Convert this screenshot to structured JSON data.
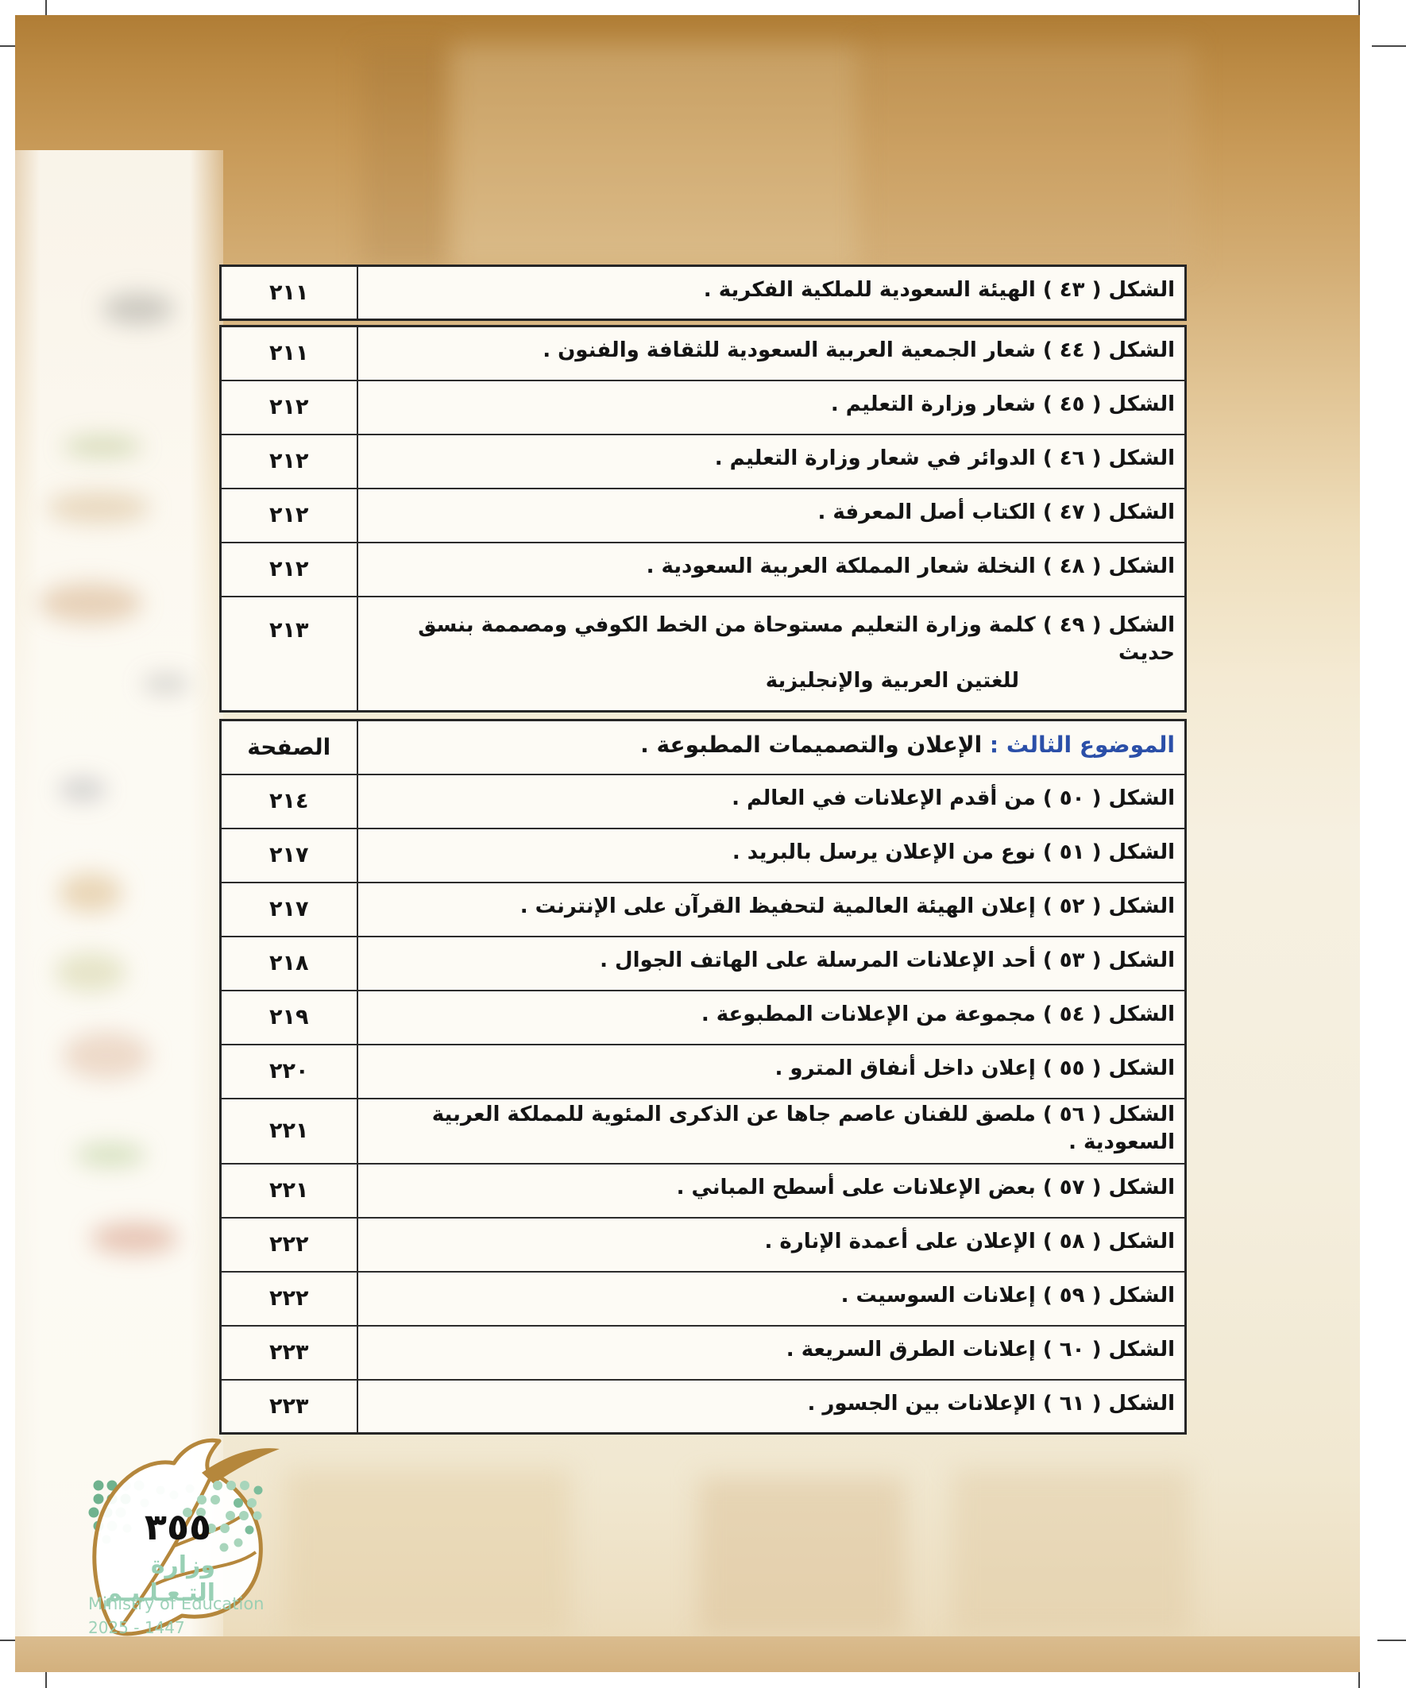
{
  "colors": {
    "section_blue": "#2b4fa8",
    "leaf_gold": "#b5873c",
    "logo_green_dark": "#6fb28e",
    "logo_green_light": "#a8d5bb"
  },
  "footer": {
    "page_number": "٣٥٥",
    "logo_arabic": "وزارة التـعـلـيـم",
    "logo_english": "Ministry of Education",
    "logo_year": "2025 - 1447"
  },
  "toc": {
    "first_row": {
      "text": "الشكل ( ٤٣ ) الهيئة السعودية للملكية الفكرية .",
      "page": "٢١١"
    },
    "section_header": {
      "label": "الموضوع الثالث :",
      "title": "الإعلان والتصميمات المطبوعة .",
      "page_col": "الصفحة"
    },
    "rows_b": [
      {
        "text": "الشكل ( ٤٤ ) شعار الجمعية العربية السعودية للثقافة والفنون .",
        "page": "٢١١"
      },
      {
        "text": "الشكل ( ٤٥ ) شعار وزارة التعليم .",
        "page": "٢١٢"
      },
      {
        "text": "الشكل ( ٤٦ ) الدوائر في شعار وزارة التعليم .",
        "page": "٢١٢"
      },
      {
        "text": "الشكل ( ٤٧ ) الكتاب أصل المعرفة .",
        "page": "٢١٢"
      },
      {
        "text": "الشكل ( ٤٨ ) النخلة شعار المملكة العربية السعودية .",
        "page": "٢١٢"
      },
      {
        "text": "الشكل ( ٤٩ ) كلمة وزارة التعليم مستوحاة من الخط الكوفي ومصممة بنسق حديث",
        "text2": "للغتين العربية والإنجليزية",
        "page": "٢١٣",
        "tall": true
      }
    ],
    "rows_c": [
      {
        "text": "الشكل ( ٥٠ ) من أقدم الإعلانات في العالم .",
        "page": "٢١٤"
      },
      {
        "text": "الشكل ( ٥١ ) نوع من الإعلان يرسل بالبريد .",
        "page": "٢١٧"
      },
      {
        "text": "الشكل ( ٥٢ ) إعلان الهيئة العالمية لتحفيظ القرآن على الإنترنت .",
        "page": "٢١٧"
      },
      {
        "text": "الشكل ( ٥٣ ) أحد الإعلانات المرسلة على الهاتف الجوال .",
        "page": "٢١٨"
      },
      {
        "text": "الشكل ( ٥٤ ) مجموعة من الإعلانات المطبوعة .",
        "page": "٢١٩"
      },
      {
        "text": "الشكل ( ٥٥ ) إعلان داخل أنفاق المترو .",
        "page": "٢٢٠"
      },
      {
        "text": "الشكل ( ٥٦ ) ملصق للفنان عاصم جاها عن الذكرى المئوية للمملكة العربية السعودية .",
        "page": "٢٢١"
      },
      {
        "text": "الشكل ( ٥٧ ) بعض الإعلانات على أسطح المباني .",
        "page": "٢٢١"
      },
      {
        "text": "الشكل ( ٥٨ ) الإعلان على أعمدة الإنارة .",
        "page": "٢٢٢"
      },
      {
        "text": "الشكل ( ٥٩ ) إعلانات السوسيت .",
        "page": "٢٢٢"
      },
      {
        "text": "الشكل ( ٦٠ ) إعلانات الطرق السريعة .",
        "page": "٢٢٣"
      },
      {
        "text": "الشكل ( ٦١ ) الإعلانات بين الجسور .",
        "page": "٢٢٣"
      }
    ]
  }
}
